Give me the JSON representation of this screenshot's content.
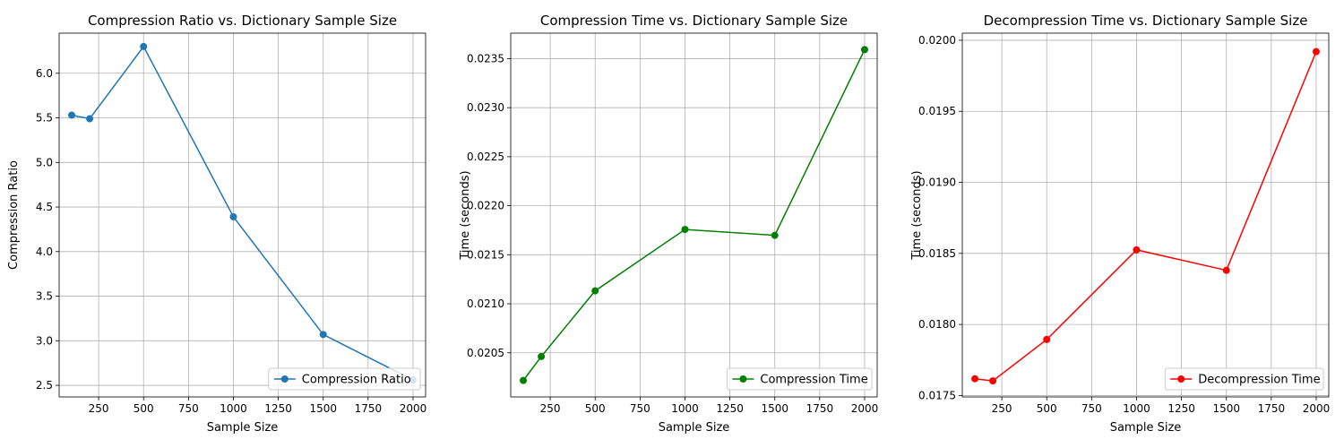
{
  "chart_data": [
    {
      "type": "line",
      "title": "Compression Ratio vs. Dictionary Sample Size",
      "xlabel": "Sample Size",
      "ylabel": "Compression Ratio",
      "x": [
        100,
        200,
        500,
        1000,
        1500,
        2000
      ],
      "series": [
        {
          "name": "Compression Ratio",
          "values": [
            5.53,
            5.49,
            6.3,
            4.39,
            3.07,
            2.56
          ],
          "color": "#1f77b4"
        }
      ],
      "xlim": [
        30,
        2070
      ],
      "ylim": [
        2.37,
        6.45
      ],
      "xticks": [
        250,
        500,
        750,
        1000,
        1250,
        1500,
        1750,
        2000
      ],
      "xtick_labels": [
        "250",
        "500",
        "750",
        "1000",
        "1250",
        "1500",
        "1750",
        "2000"
      ],
      "yticks": [
        2.5,
        3.0,
        3.5,
        4.0,
        4.5,
        5.0,
        5.5,
        6.0
      ],
      "ytick_labels": [
        "2.5",
        "3.0",
        "3.5",
        "4.0",
        "4.5",
        "5.0",
        "5.5",
        "6.0"
      ],
      "grid": true,
      "legend": "lower right"
    },
    {
      "type": "line",
      "title": "Compression Time vs. Dictionary Sample Size",
      "xlabel": "Sample Size",
      "ylabel": "Time (seconds)",
      "x": [
        100,
        200,
        500,
        1000,
        1500,
        2000
      ],
      "series": [
        {
          "name": "Compression Time",
          "values": [
            0.020218,
            0.020462,
            0.021132,
            0.021758,
            0.021698,
            0.023592
          ],
          "color": "#008000"
        }
      ],
      "xlim": [
        30,
        2070
      ],
      "ylim": [
        0.02005,
        0.02376
      ],
      "xticks": [
        250,
        500,
        750,
        1000,
        1250,
        1500,
        1750,
        2000
      ],
      "xtick_labels": [
        "250",
        "500",
        "750",
        "1000",
        "1250",
        "1500",
        "1750",
        "2000"
      ],
      "yticks": [
        0.0205,
        0.021,
        0.0215,
        0.022,
        0.0225,
        0.023,
        0.0235
      ],
      "ytick_labels": [
        "0.0205",
        "0.0210",
        "0.0215",
        "0.0220",
        "0.0225",
        "0.0230",
        "0.0235"
      ],
      "grid": true,
      "legend": "lower right"
    },
    {
      "type": "line",
      "title": "Decompression Time vs. Dictionary Sample Size",
      "xlabel": "Sample Size",
      "ylabel": "Time (seconds)",
      "x": [
        100,
        200,
        500,
        1000,
        1500,
        2000
      ],
      "series": [
        {
          "name": "Decompression Time",
          "values": [
            0.017618,
            0.017603,
            0.017894,
            0.018525,
            0.018381,
            0.01992
          ],
          "color": "#ff0000"
        }
      ],
      "xlim": [
        30,
        2070
      ],
      "ylim": [
        0.01749,
        0.02005
      ],
      "xticks": [
        250,
        500,
        750,
        1000,
        1250,
        1500,
        1750,
        2000
      ],
      "xtick_labels": [
        "250",
        "500",
        "750",
        "1000",
        "1250",
        "1500",
        "1750",
        "2000"
      ],
      "yticks": [
        0.0175,
        0.018,
        0.0185,
        0.019,
        0.0195,
        0.02
      ],
      "ytick_labels": [
        "0.0175",
        "0.0180",
        "0.0185",
        "0.0190",
        "0.0195",
        "0.0200"
      ],
      "grid": true,
      "legend": "lower right"
    }
  ]
}
